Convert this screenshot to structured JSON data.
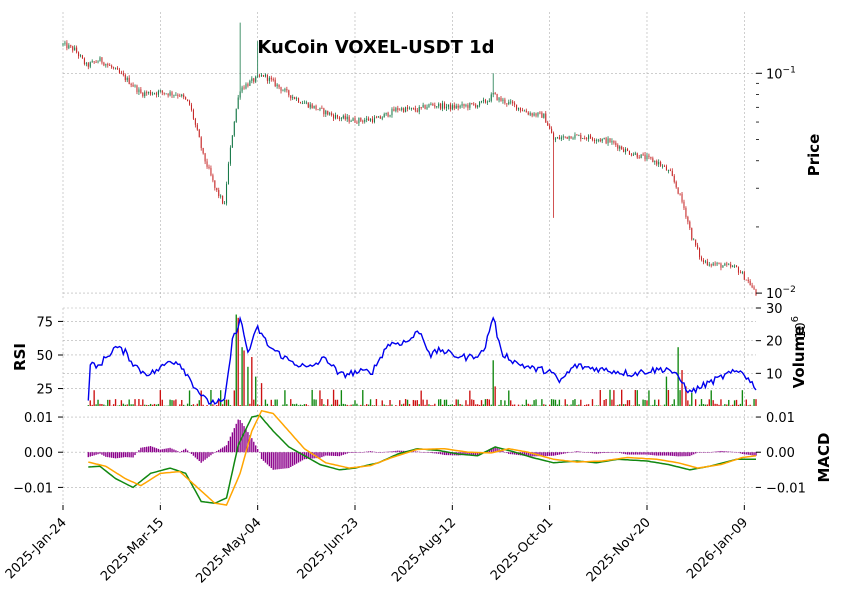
{
  "chart_data": {
    "type": "candlestick",
    "title": "KuCoin VOXEL-USDT 1d",
    "x_tick_labels": [
      "2025-Jan-24",
      "2025-Mar-15",
      "2025-May-04",
      "2025-Jun-23",
      "2025-Aug-12",
      "2025-Oct-01",
      "2025-Nov-20",
      "2026-Jan-09"
    ],
    "date_range": [
      "2025-Jan-24",
      "2026-Jan-15"
    ],
    "colors": {
      "up": "#1a7a4a",
      "down": "#c62828",
      "rsi": "#0000ee",
      "vol_up": "#118811",
      "vol_down": "#cc1111",
      "macd": "#118811",
      "signal": "#ffa500",
      "hist": "#8b008b"
    },
    "panels": {
      "price": {
        "ylabel": "Price",
        "scale": "log",
        "yticks": [
          {
            "base": "10",
            "exp": "−1",
            "value": 0.1
          },
          {
            "base": "10",
            "exp": "−2",
            "value": 0.01
          }
        ],
        "ylim": [
          0.0095,
          0.19
        ],
        "anchors": [
          [
            "2025-Jan-24",
            0.135
          ],
          [
            "2025-Jan-30",
            0.128
          ],
          [
            "2025-Feb-05",
            0.108
          ],
          [
            "2025-Feb-12",
            0.115
          ],
          [
            "2025-Feb-20",
            0.103
          ],
          [
            "2025-Feb-28",
            0.09
          ],
          [
            "2025-Mar-05",
            0.081
          ],
          [
            "2025-Mar-15",
            0.082
          ],
          [
            "2025-Mar-25",
            0.08
          ],
          [
            "2025-Mar-30",
            0.072
          ],
          [
            "2025-Apr-02",
            0.058
          ],
          [
            "2025-Apr-06",
            0.042
          ],
          [
            "2025-Apr-12",
            0.03
          ],
          [
            "2025-Apr-17",
            0.025
          ],
          [
            "2025-Apr-20",
            0.045
          ],
          [
            "2025-Apr-25",
            0.085
          ],
          [
            "2025-May-01",
            0.092
          ],
          [
            "2025-May-07",
            0.098
          ],
          [
            "2025-May-14",
            0.088
          ],
          [
            "2025-May-20",
            0.08
          ],
          [
            "2025-May-27",
            0.074
          ],
          [
            "2025-Jun-05",
            0.068
          ],
          [
            "2025-Jun-14",
            0.063
          ],
          [
            "2025-Jun-23",
            0.061
          ],
          [
            "2025-Jul-05",
            0.062
          ],
          [
            "2025-Jul-15",
            0.069
          ],
          [
            "2025-Jul-25",
            0.068
          ],
          [
            "2025-Aug-01",
            0.072
          ],
          [
            "2025-Aug-12",
            0.07
          ],
          [
            "2025-Aug-25",
            0.072
          ],
          [
            "2025-Aug-30",
            0.075
          ],
          [
            "2025-Sep-02",
            0.08
          ],
          [
            "2025-Sep-05",
            0.076
          ],
          [
            "2025-Sep-12",
            0.072
          ],
          [
            "2025-Sep-20",
            0.066
          ],
          [
            "2025-Sep-28",
            0.064
          ],
          [
            "2025-Oct-03",
            0.05
          ],
          [
            "2025-Oct-12",
            0.052
          ],
          [
            "2025-Oct-22",
            0.051
          ],
          [
            "2025-Nov-01",
            0.049
          ],
          [
            "2025-Nov-10",
            0.044
          ],
          [
            "2025-Nov-20",
            0.041
          ],
          [
            "2025-Nov-26",
            0.039
          ],
          [
            "2025-Dec-02",
            0.035
          ],
          [
            "2025-Dec-08",
            0.026
          ],
          [
            "2025-Dec-13",
            0.018
          ],
          [
            "2025-Dec-18",
            0.014
          ],
          [
            "2025-Dec-25",
            0.0135
          ],
          [
            "2026-Jan-05",
            0.013
          ],
          [
            "2026-Jan-12",
            0.011
          ],
          [
            "2026-Jan-15",
            0.0098
          ]
        ],
        "spikes": [
          [
            "2025-Apr-25",
            0.17
          ],
          [
            "2025-May-04",
            0.14
          ],
          [
            "2025-Sep-02",
            0.1
          ],
          [
            "2025-Oct-03",
            0.022
          ]
        ]
      },
      "rsi": {
        "ylabel": "RSI",
        "yticks": [
          25,
          50,
          75
        ],
        "ylim": [
          12,
          85
        ],
        "anchors": [
          [
            "2025-Feb-06",
            16
          ],
          [
            "2025-Feb-07",
            45
          ],
          [
            "2025-Feb-10",
            40
          ],
          [
            "2025-Feb-15",
            48
          ],
          [
            "2025-Feb-20",
            56
          ],
          [
            "2025-Feb-25",
            52
          ],
          [
            "2025-Mar-01",
            44
          ],
          [
            "2025-Mar-05",
            38
          ],
          [
            "2025-Mar-10",
            36
          ],
          [
            "2025-Mar-15",
            40
          ],
          [
            "2025-Mar-20",
            46
          ],
          [
            "2025-Mar-25",
            44
          ],
          [
            "2025-Apr-01",
            28
          ],
          [
            "2025-Apr-08",
            15
          ],
          [
            "2025-Apr-17",
            15
          ],
          [
            "2025-Apr-21",
            60
          ],
          [
            "2025-Apr-25",
            77
          ],
          [
            "2025-Apr-29",
            52
          ],
          [
            "2025-May-04",
            70
          ],
          [
            "2025-May-10",
            56
          ],
          [
            "2025-May-20",
            46
          ],
          [
            "2025-May-30",
            40
          ],
          [
            "2025-Jun-08",
            48
          ],
          [
            "2025-Jun-15",
            35
          ],
          [
            "2025-Jun-23",
            37
          ],
          [
            "2025-Jul-02",
            38
          ],
          [
            "2025-Jul-10",
            58
          ],
          [
            "2025-Jul-20",
            60
          ],
          [
            "2025-Jul-26",
            68
          ],
          [
            "2025-Aug-01",
            50
          ],
          [
            "2025-Aug-06",
            54
          ],
          [
            "2025-Aug-12",
            50
          ],
          [
            "2025-Aug-20",
            48
          ],
          [
            "2025-Aug-28",
            52
          ],
          [
            "2025-Sep-02",
            79
          ],
          [
            "2025-Sep-06",
            52
          ],
          [
            "2025-Sep-14",
            44
          ],
          [
            "2025-Sep-22",
            40
          ],
          [
            "2025-Oct-01",
            38
          ],
          [
            "2025-Oct-06",
            30
          ],
          [
            "2025-Oct-14",
            42
          ],
          [
            "2025-Oct-24",
            40
          ],
          [
            "2025-Nov-03",
            38
          ],
          [
            "2025-Nov-12",
            36
          ],
          [
            "2025-Nov-20",
            38
          ],
          [
            "2025-Dec-01",
            40
          ],
          [
            "2025-Dec-08",
            30
          ],
          [
            "2025-Dec-12",
            22
          ],
          [
            "2025-Dec-20",
            28
          ],
          [
            "2026-Jan-01",
            36
          ],
          [
            "2026-Jan-08",
            38
          ],
          [
            "2026-Jan-12",
            30
          ],
          [
            "2026-Jan-15",
            26
          ]
        ]
      },
      "volume": {
        "ylabel": "Volume",
        "multiplier_base": "10",
        "multiplier_exp": "6",
        "yticks": [
          10,
          20,
          30
        ],
        "ylim": [
          0,
          30
        ],
        "spikes": [
          [
            "2025-Apr-23",
            28,
            "up"
          ],
          [
            "2025-Apr-24",
            27,
            "down"
          ],
          [
            "2025-Apr-26",
            18,
            "up"
          ],
          [
            "2025-Apr-27",
            17,
            "down"
          ],
          [
            "2025-Apr-29",
            12,
            "up"
          ],
          [
            "2025-May-01",
            15,
            "down"
          ],
          [
            "2025-May-03",
            9,
            "up"
          ],
          [
            "2025-May-06",
            7,
            "down"
          ],
          [
            "2025-Sep-02",
            14,
            "up"
          ],
          [
            "2025-Sep-03",
            6,
            "down"
          ],
          [
            "2025-Nov-30",
            9,
            "up"
          ],
          [
            "2025-Dec-06",
            18,
            "up"
          ],
          [
            "2025-Dec-08",
            11,
            "down"
          ],
          [
            "2025-Dec-10",
            6,
            "down"
          ],
          [
            "2025-Dec-13",
            4,
            "up"
          ]
        ]
      },
      "macd": {
        "ylabel": "MACD",
        "yticks_left": [
          {
            "label": "−0.01",
            "value": -0.01
          },
          {
            "label": "0.00",
            "value": 0.0
          },
          {
            "label": "0.01",
            "value": 0.01
          }
        ],
        "yticks_right": [
          {
            "label": "−0.01",
            "value": -0.01
          },
          {
            "label": "0.00",
            "value": 0.0
          },
          {
            "label": "0.01",
            "value": 0.01
          }
        ],
        "ylim": [
          -0.015,
          0.012
        ],
        "macd_anchors": [
          [
            "2025-Feb-06",
            -0.0042
          ],
          [
            "2025-Feb-12",
            -0.004
          ],
          [
            "2025-Feb-20",
            -0.0075
          ],
          [
            "2025-Mar-01",
            -0.01
          ],
          [
            "2025-Mar-10",
            -0.006
          ],
          [
            "2025-Mar-20",
            -0.0045
          ],
          [
            "2025-Mar-28",
            -0.006
          ],
          [
            "2025-Apr-05",
            -0.014
          ],
          [
            "2025-Apr-12",
            -0.0145
          ],
          [
            "2025-Apr-18",
            -0.013
          ],
          [
            "2025-Apr-24",
            0.002
          ],
          [
            "2025-May-01",
            0.01
          ],
          [
            "2025-May-05",
            0.0105
          ],
          [
            "2025-May-12",
            0.006
          ],
          [
            "2025-May-20",
            0.0015
          ],
          [
            "2025-May-28",
            -0.001
          ],
          [
            "2025-Jun-05",
            -0.0035
          ],
          [
            "2025-Jun-15",
            -0.005
          ],
          [
            "2025-Jun-23",
            -0.0045
          ],
          [
            "2025-Jul-05",
            -0.003
          ],
          [
            "2025-Jul-15",
            -0.0005
          ],
          [
            "2025-Jul-25",
            0.001
          ],
          [
            "2025-Aug-05",
            0.0005
          ],
          [
            "2025-Aug-15",
            -0.0005
          ],
          [
            "2025-Aug-25",
            -0.001
          ],
          [
            "2025-Sep-03",
            0.0015
          ],
          [
            "2025-Sep-12",
            0.0002
          ],
          [
            "2025-Sep-22",
            -0.0015
          ],
          [
            "2025-Oct-03",
            -0.003
          ],
          [
            "2025-Oct-15",
            -0.0025
          ],
          [
            "2025-Oct-25",
            -0.003
          ],
          [
            "2025-Nov-05",
            -0.002
          ],
          [
            "2025-Nov-20",
            -0.0025
          ],
          [
            "2025-Dec-01",
            -0.0035
          ],
          [
            "2025-Dec-12",
            -0.005
          ],
          [
            "2025-Dec-22",
            -0.004
          ],
          [
            "2026-Jan-05",
            -0.002
          ],
          [
            "2026-Jan-15",
            -0.002
          ]
        ],
        "signal_anchors": [
          [
            "2025-Feb-06",
            -0.0028
          ],
          [
            "2025-Feb-15",
            -0.004
          ],
          [
            "2025-Feb-25",
            -0.0075
          ],
          [
            "2025-Mar-05",
            -0.0095
          ],
          [
            "2025-Mar-15",
            -0.006
          ],
          [
            "2025-Mar-25",
            -0.0055
          ],
          [
            "2025-Apr-03",
            -0.01
          ],
          [
            "2025-Apr-12",
            -0.0145
          ],
          [
            "2025-Apr-18",
            -0.015
          ],
          [
            "2025-Apr-25",
            -0.006
          ],
          [
            "2025-May-01",
            0.006
          ],
          [
            "2025-May-06",
            0.0118
          ],
          [
            "2025-May-12",
            0.011
          ],
          [
            "2025-May-20",
            0.006
          ],
          [
            "2025-May-28",
            0.001
          ],
          [
            "2025-Jun-08",
            -0.003
          ],
          [
            "2025-Jun-20",
            -0.0045
          ],
          [
            "2025-Jul-01",
            -0.0038
          ],
          [
            "2025-Jul-12",
            -0.0015
          ],
          [
            "2025-Jul-25",
            0.0008
          ],
          [
            "2025-Aug-08",
            0.001
          ],
          [
            "2025-Aug-20",
            0.0
          ],
          [
            "2025-Sep-01",
            -0.0002
          ],
          [
            "2025-Sep-10",
            0.001
          ],
          [
            "2025-Sep-20",
            0.0
          ],
          [
            "2025-Oct-03",
            -0.002
          ],
          [
            "2025-Oct-15",
            -0.0028
          ],
          [
            "2025-Oct-28",
            -0.0025
          ],
          [
            "2025-Nov-10",
            -0.0015
          ],
          [
            "2025-Nov-25",
            -0.002
          ],
          [
            "2025-Dec-06",
            -0.003
          ],
          [
            "2025-Dec-16",
            -0.0045
          ],
          [
            "2025-Dec-28",
            -0.0035
          ],
          [
            "2026-Jan-08",
            -0.0015
          ],
          [
            "2026-Jan-15",
            -0.001
          ]
        ]
      }
    }
  }
}
